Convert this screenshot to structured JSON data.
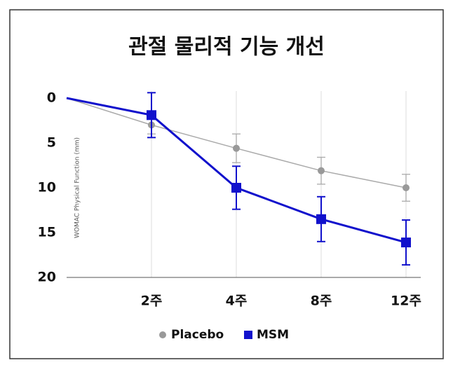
{
  "chart_data": {
    "type": "line",
    "title": "관절 물리적 기능 개선",
    "y_label": "WOMAC Physical Function (mm)",
    "categories": [
      null,
      "2주",
      "4주",
      "8주",
      "12주"
    ],
    "series": [
      {
        "name": "Placebo",
        "color": "#999999",
        "marker": "circle",
        "values": [
          0,
          3,
          5.6,
          8.1,
          10
        ],
        "errors": [
          null,
          1.0,
          1.6,
          1.5,
          1.5
        ]
      },
      {
        "name": "MSM",
        "color": "#1111cc",
        "marker": "square",
        "values": [
          0,
          1.9,
          10,
          13.5,
          16.1
        ],
        "errors": [
          null,
          2.5,
          2.4,
          2.5,
          2.5
        ]
      }
    ],
    "ylim": [
      0,
      20
    ],
    "yticks": [
      0,
      5,
      10,
      15,
      20
    ],
    "y_inverted": true,
    "grid": true,
    "legend": "bottom"
  }
}
